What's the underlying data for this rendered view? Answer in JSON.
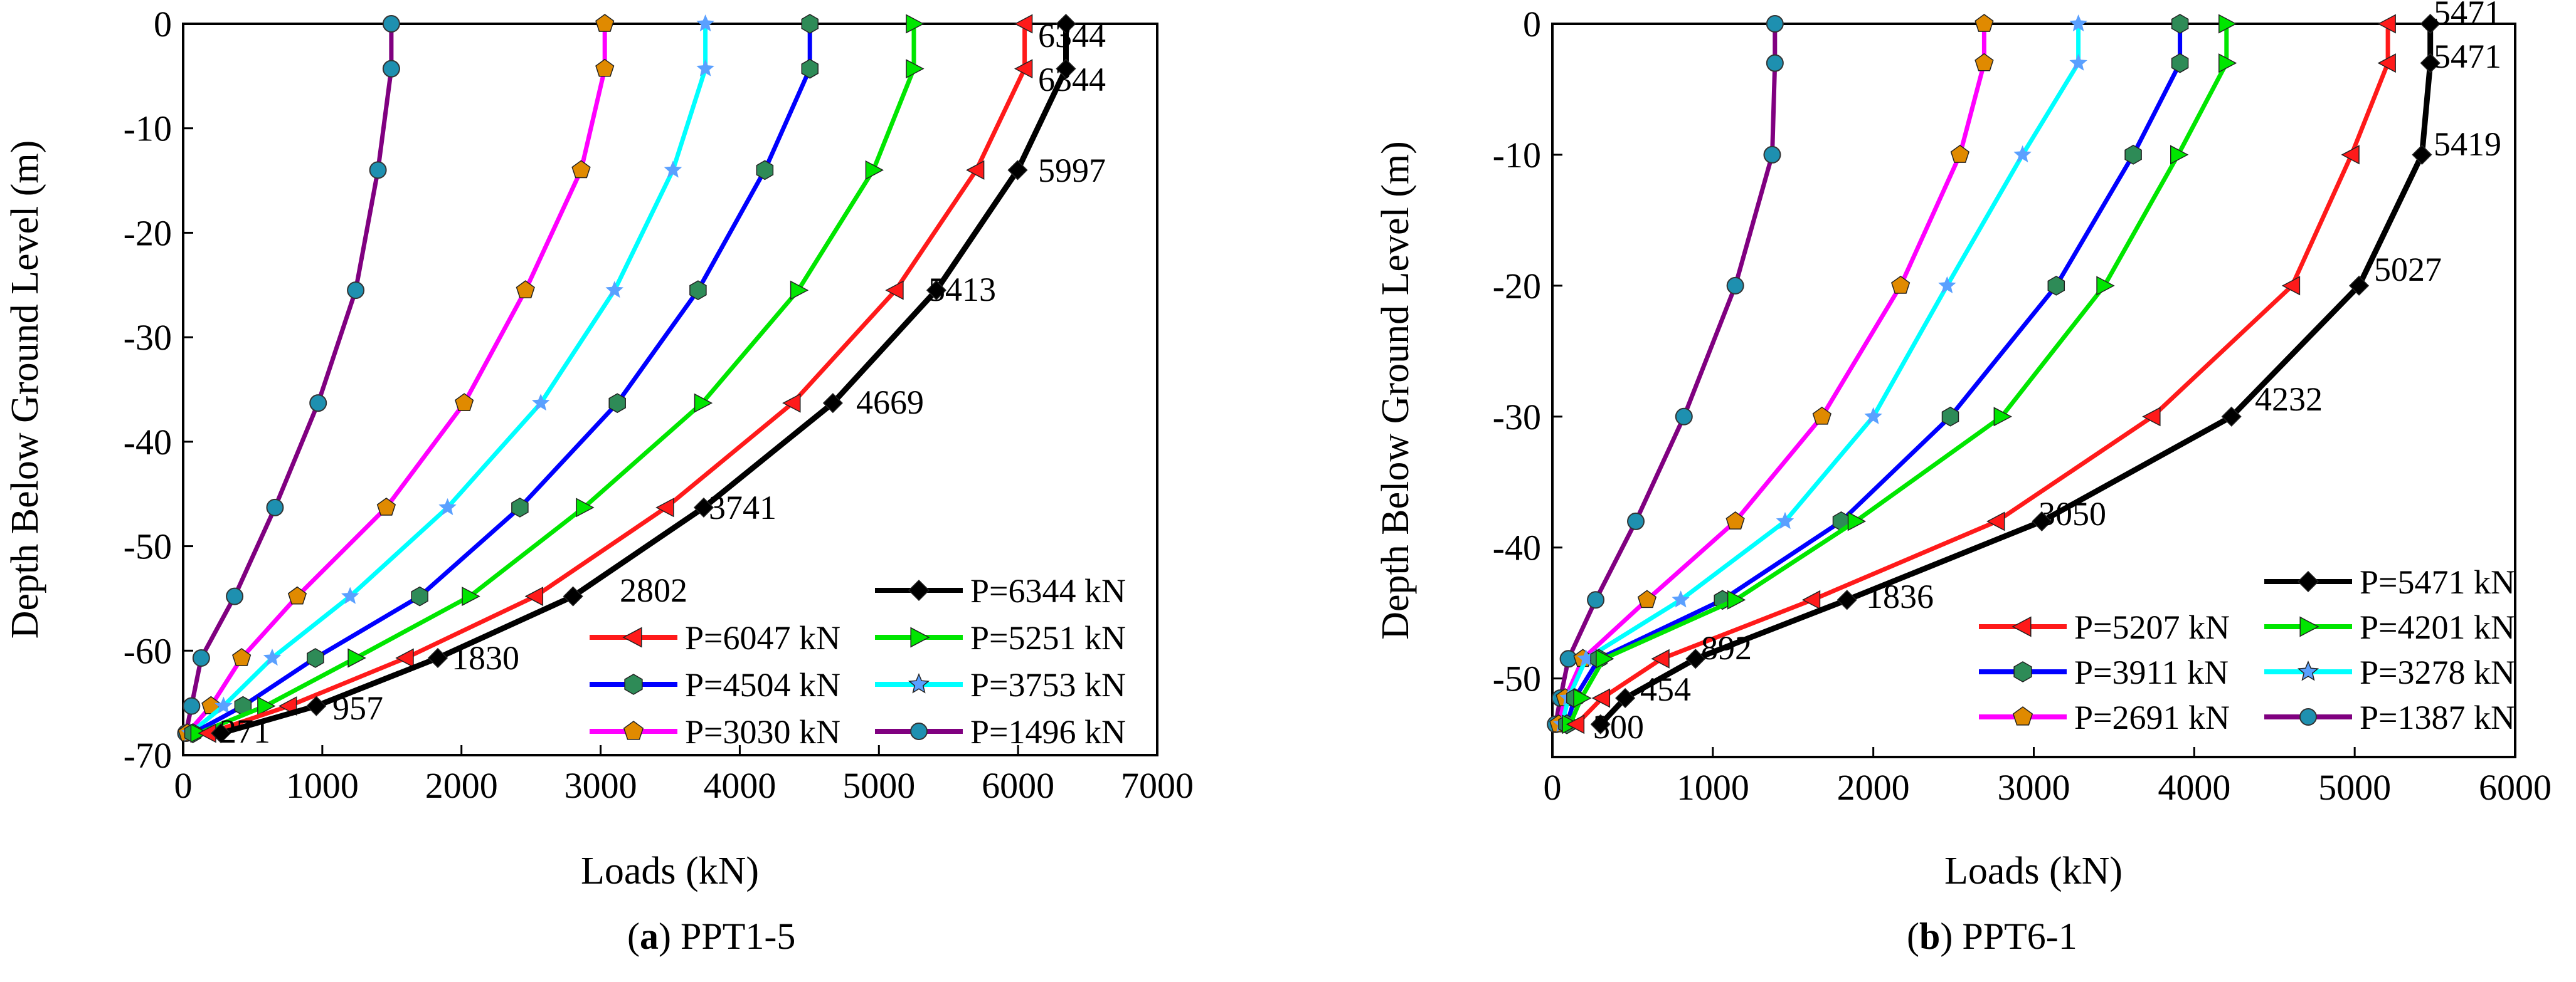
{
  "chart_data": [
    {
      "type": "line",
      "caption": {
        "letter": "a",
        "label": "PPT1-5"
      },
      "xlabel": "Loads (kN)",
      "ylabel": "Depth Below Ground Level (m)",
      "xlim": [
        0,
        7000
      ],
      "ylim": [
        -70,
        0
      ],
      "xticks": [
        0,
        1000,
        2000,
        3000,
        4000,
        5000,
        6000,
        7000
      ],
      "yticks": [
        0,
        -10,
        -20,
        -30,
        -40,
        -50,
        -60,
        -70
      ],
      "grid": false,
      "legend_position": "bottom-right",
      "legend_columns": 2,
      "series": [
        {
          "name": "P=6344 kN",
          "color": "#000000",
          "marker": "diamond",
          "x": [
            6344,
            6344,
            5997,
            5413,
            4669,
            3741,
            2802,
            1830,
            957,
            271
          ],
          "y": [
            0,
            -4.3,
            -14,
            -25.5,
            -36.3,
            -46.3,
            -54.8,
            -60.7,
            -65.3,
            -67.9
          ]
        },
        {
          "name": "P=6047 kN",
          "color": "#ff1a1a",
          "marker": "triangle-left",
          "x": [
            6047,
            6047,
            5700,
            5120,
            4380,
            3470,
            2530,
            1600,
            760,
            180
          ],
          "y": [
            0,
            -4.3,
            -14,
            -25.5,
            -36.3,
            -46.3,
            -54.8,
            -60.7,
            -65.3,
            -67.9
          ]
        },
        {
          "name": "P=5251 kN",
          "color": "#00e600",
          "marker": "triangle-right",
          "x": [
            5251,
            5251,
            4960,
            4420,
            3730,
            2880,
            2060,
            1240,
            590,
            110
          ],
          "y": [
            0,
            -4.3,
            -14,
            -25.5,
            -36.3,
            -46.3,
            -54.8,
            -60.7,
            -65.3,
            -67.9
          ]
        },
        {
          "name": "P=4504 kN",
          "color": "#0000ff",
          "marker": "hexagon",
          "x": [
            4504,
            4504,
            4180,
            3700,
            3120,
            2420,
            1700,
            950,
            430,
            70
          ],
          "y": [
            0,
            -4.3,
            -14,
            -25.5,
            -36.3,
            -46.3,
            -54.8,
            -60.7,
            -65.3,
            -67.9
          ]
        },
        {
          "name": "P=3753 kN",
          "color": "#00ffff",
          "marker": "star",
          "x": [
            3753,
            3753,
            3520,
            3100,
            2570,
            1900,
            1200,
            640,
            290,
            50
          ],
          "y": [
            0,
            -4.3,
            -14,
            -25.5,
            -36.3,
            -46.3,
            -54.8,
            -60.7,
            -65.3,
            -67.9
          ]
        },
        {
          "name": "P=3030 kN",
          "color": "#ff00ff",
          "marker": "pentagon",
          "x": [
            3030,
            3030,
            2860,
            2460,
            2020,
            1460,
            820,
            420,
            200,
            30
          ],
          "y": [
            0,
            -4.3,
            -14,
            -25.5,
            -36.3,
            -46.3,
            -54.8,
            -60.7,
            -65.3,
            -67.9
          ]
        },
        {
          "name": "P=1496 kN",
          "color": "#800080",
          "marker": "circle",
          "x": [
            1496,
            1496,
            1400,
            1240,
            970,
            660,
            370,
            130,
            60,
            20
          ],
          "y": [
            0,
            -4.3,
            -14,
            -25.5,
            -36.3,
            -46.3,
            -54.8,
            -60.7,
            -65.3,
            -67.9
          ]
        }
      ],
      "annotations": [
        "6344",
        "6344",
        "5997",
        "5413",
        "4669",
        "3741",
        "2802",
        "1830",
        "957",
        "271"
      ]
    },
    {
      "type": "line",
      "caption": {
        "letter": "b",
        "label": "PPT6-1"
      },
      "xlabel": "Loads (kN)",
      "ylabel": "Depth Below Ground Level (m)",
      "xlim": [
        0,
        6000
      ],
      "ylim": [
        -56,
        0
      ],
      "xticks": [
        0,
        1000,
        2000,
        3000,
        4000,
        5000,
        6000
      ],
      "yticks": [
        0,
        -10,
        -20,
        -30,
        -40,
        -50
      ],
      "grid": false,
      "legend_position": "bottom-right",
      "legend_columns": 2,
      "series": [
        {
          "name": "P=5471 kN",
          "color": "#000000",
          "marker": "diamond",
          "x": [
            5471,
            5471,
            5419,
            5027,
            4232,
            3050,
            1836,
            892,
            454,
            300
          ],
          "y": [
            0,
            -3,
            -10,
            -20,
            -30,
            -38,
            -44,
            -48.5,
            -51.5,
            -53.5
          ]
        },
        {
          "name": "P=5207 kN",
          "color": "#ff1a1a",
          "marker": "triangle-left",
          "x": [
            5207,
            5207,
            4980,
            4610,
            3740,
            2770,
            1620,
            680,
            310,
            150
          ],
          "y": [
            0,
            -3,
            -10,
            -20,
            -30,
            -38,
            -44,
            -48.5,
            -51.5,
            -53.5
          ]
        },
        {
          "name": "P=4201 kN",
          "color": "#00e600",
          "marker": "triangle-right",
          "x": [
            4201,
            4201,
            3900,
            3440,
            2800,
            1890,
            1140,
            320,
            180,
            110
          ],
          "y": [
            0,
            -3,
            -10,
            -20,
            -30,
            -38,
            -44,
            -48.5,
            -51.5,
            -53.5
          ]
        },
        {
          "name": "P=3911 kN",
          "color": "#0000ff",
          "marker": "hexagon",
          "x": [
            3911,
            3911,
            3620,
            3140,
            2480,
            1800,
            1060,
            290,
            140,
            90
          ],
          "y": [
            0,
            -3,
            -10,
            -20,
            -30,
            -38,
            -44,
            -48.5,
            -51.5,
            -53.5
          ]
        },
        {
          "name": "P=3278 kN",
          "color": "#00ffff",
          "marker": "star",
          "x": [
            3278,
            3278,
            2930,
            2460,
            2000,
            1450,
            800,
            210,
            100,
            60
          ],
          "y": [
            0,
            -3,
            -10,
            -20,
            -30,
            -38,
            -44,
            -48.5,
            -51.5,
            -53.5
          ]
        },
        {
          "name": "P=2691 kN",
          "color": "#ff00ff",
          "marker": "pentagon",
          "x": [
            2691,
            2691,
            2540,
            2170,
            1680,
            1140,
            590,
            190,
            80,
            40
          ],
          "y": [
            0,
            -3,
            -10,
            -20,
            -30,
            -38,
            -44,
            -48.5,
            -51.5,
            -53.5
          ]
        },
        {
          "name": "P=1387 kN",
          "color": "#800080",
          "marker": "circle",
          "x": [
            1387,
            1387,
            1370,
            1140,
            820,
            520,
            270,
            100,
            50,
            20
          ],
          "y": [
            0,
            -3,
            -10,
            -20,
            -30,
            -38,
            -44,
            -48.5,
            -51.5,
            -53.5
          ]
        }
      ],
      "annotations": [
        "5471",
        "5471",
        "5419",
        "5027",
        "4232",
        "3050",
        "1836",
        "892",
        "454",
        "300"
      ]
    }
  ]
}
